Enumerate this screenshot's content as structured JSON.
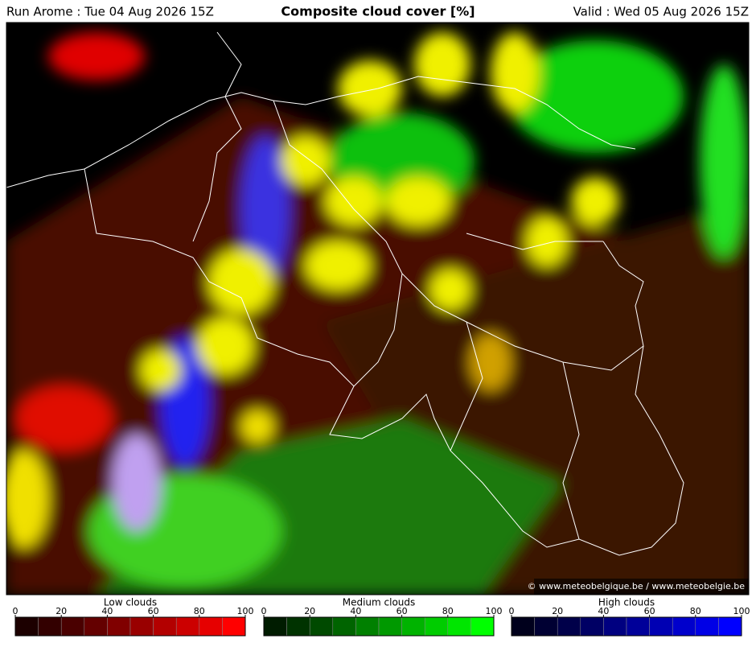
{
  "header": {
    "run": "Run Arome : Tue 04 Aug 2026 15Z",
    "title": "Composite cloud cover [%]",
    "valid": "Valid : Wed 05 Aug 2026 15Z"
  },
  "map": {
    "credit": "© www.meteobelgique.be / www.meteobelgie.be"
  },
  "legends": [
    {
      "title": "Low clouds",
      "ticks": [
        0,
        20,
        40,
        60,
        80,
        100
      ],
      "colors": [
        "#1c0000",
        "#330000",
        "#4a0000",
        "#640000",
        "#800000",
        "#990000",
        "#b30000",
        "#cc0000",
        "#e60000",
        "#ff0000"
      ]
    },
    {
      "title": "Medium clouds",
      "ticks": [
        0,
        20,
        40,
        60,
        80,
        100
      ],
      "colors": [
        "#001c00",
        "#003300",
        "#004a00",
        "#006400",
        "#008000",
        "#009900",
        "#00b300",
        "#00cc00",
        "#00e600",
        "#00ff00"
      ]
    },
    {
      "title": "High clouds",
      "ticks": [
        0,
        20,
        40,
        60,
        80,
        100
      ],
      "colors": [
        "#00001c",
        "#000033",
        "#00004a",
        "#000064",
        "#000080",
        "#000099",
        "#0000b3",
        "#0000cc",
        "#0000e6",
        "#0000ff"
      ]
    }
  ]
}
